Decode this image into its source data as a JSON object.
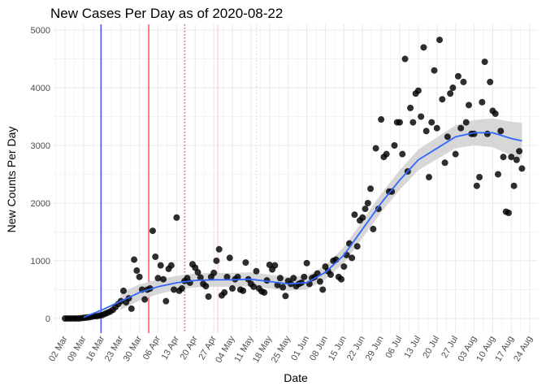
{
  "chart_data": {
    "type": "scatter",
    "title": "New Cases Per Day as of 2020-08-22",
    "xlabel": "Date",
    "ylabel": "New Counts Per Day",
    "start_date": "2020-03-02",
    "xlim_days": [
      -4.3,
      178
    ],
    "ylim": [
      -254,
      5099
    ],
    "grid": true,
    "y_ticks": [
      0,
      1000,
      2000,
      3000,
      4000,
      5000
    ],
    "x_tick_labels": [
      "02 Mar",
      "09 Mar",
      "16 Mar",
      "23 Mar",
      "30 Mar",
      "06 Apr",
      "13 Apr",
      "20 Apr",
      "27 Apr",
      "04 May",
      "11 May",
      "18 May",
      "25 May",
      "01 Jun",
      "08 Jun",
      "15 Jun",
      "22 Jun",
      "29 Jun",
      "06 Jul",
      "13 Jul",
      "20 Jul",
      "27 Jul",
      "03 Aug",
      "10 Aug",
      "17 Aug",
      "24 Aug"
    ],
    "series": [
      {
        "name": "daily new cases",
        "day_offset_start": 0,
        "values": [
          0,
          0,
          0,
          0,
          0,
          0,
          5,
          10,
          15,
          20,
          30,
          40,
          40,
          50,
          60,
          80,
          100,
          120,
          150,
          200,
          250,
          300,
          480,
          280,
          350,
          170,
          1020,
          830,
          720,
          500,
          330,
          500,
          520,
          1520,
          1070,
          700,
          920,
          680,
          300,
          860,
          920,
          500,
          1750,
          480,
          520,
          650,
          700,
          620,
          940,
          880,
          800,
          710,
          600,
          560,
          380,
          720,
          790,
          1000,
          1200,
          400,
          450,
          720,
          1050,
          520,
          680,
          720,
          500,
          480,
          970,
          680,
          600,
          550,
          820,
          520,
          470,
          450,
          660,
          930,
          850,
          920,
          580,
          700,
          540,
          390,
          650,
          600,
          700,
          560,
          600,
          620,
          720,
          960,
          600,
          700,
          720,
          780,
          640,
          500,
          900,
          820,
          760,
          1000,
          1020,
          720,
          680,
          900,
          1100,
          1300,
          1050,
          1800,
          1250,
          1700,
          1750,
          1900,
          2000,
          2250,
          1550,
          2950,
          1900,
          3450,
          2800,
          2850,
          2200,
          2200,
          3000,
          3400,
          3400,
          2850,
          4500,
          2550,
          3650,
          3400,
          3900,
          3950,
          3500,
          4700,
          3250,
          2450,
          3400,
          4300,
          3300,
          4830,
          3800,
          2700,
          3150,
          3900,
          4000,
          2850,
          4200,
          3300,
          4100,
          3400,
          3700,
          3200,
          3200,
          2300,
          2450,
          3750,
          4450,
          3200,
          4100,
          3600,
          3550,
          2500,
          3250,
          2800,
          1850,
          1830,
          2800,
          2300,
          2750,
          2900,
          2600
        ]
      },
      {
        "name": "loess smooth",
        "days": [
          7,
          14,
          21,
          28,
          35,
          42,
          49,
          56,
          63,
          70,
          77,
          84,
          91,
          98,
          105,
          112,
          119,
          126,
          133,
          140,
          147,
          154,
          161,
          168,
          172
        ],
        "values": [
          20,
          150,
          300,
          450,
          550,
          620,
          660,
          670,
          670,
          680,
          640,
          600,
          620,
          800,
          1100,
          1550,
          2000,
          2400,
          2750,
          2950,
          3150,
          3220,
          3220,
          3120,
          3080
        ],
        "band_halfwidth": [
          0,
          0,
          150,
          140,
          130,
          120,
          120,
          120,
          120,
          120,
          120,
          120,
          120,
          120,
          140,
          150,
          160,
          170,
          180,
          190,
          200,
          220,
          250,
          290,
          310
        ]
      }
    ],
    "reference_lines": [
      {
        "day": 13.5,
        "color": "#0000ff",
        "style": "solid"
      },
      {
        "day": 31.5,
        "color": "#ff0000",
        "style": "solid"
      },
      {
        "day": 45,
        "color": "#ff0000",
        "style": "dotted"
      },
      {
        "day": 57.5,
        "color": "#ffc0cb",
        "style": "solid"
      },
      {
        "day": 72,
        "color": "#ffc0cb",
        "style": "dotted"
      }
    ],
    "colors": {
      "points": "#000000",
      "smooth": "#3366ff",
      "band": "#d3d3d3",
      "grid": "#ebebeb"
    }
  }
}
